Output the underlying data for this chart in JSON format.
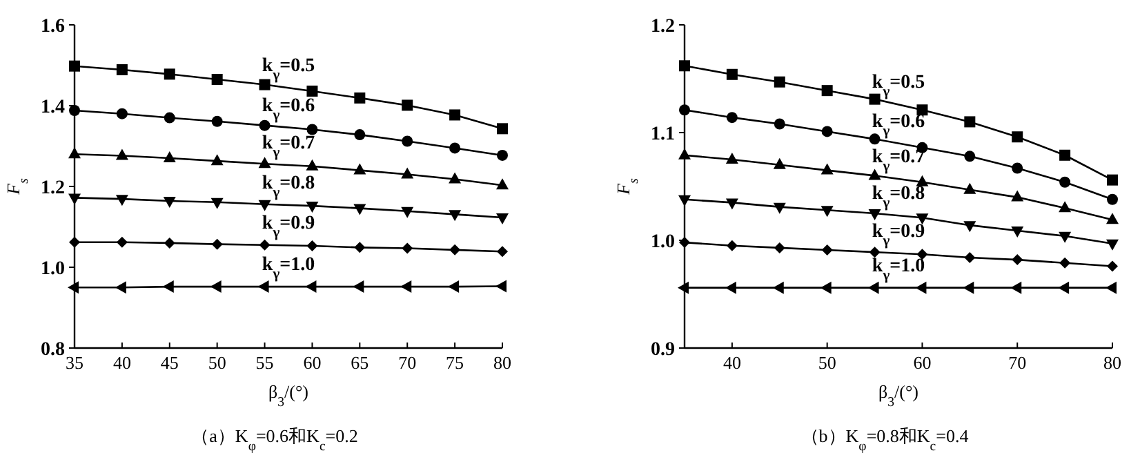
{
  "chart_data": [
    {
      "type": "line",
      "xlabel": "β$_{3}$/(°)",
      "ylabel": "F$_{s}$",
      "annotations": [
        "（a）K$_{φ}$=0.6和K$_{c}$=0.2"
      ],
      "x": [
        35,
        40,
        45,
        50,
        55,
        60,
        65,
        70,
        75,
        80
      ],
      "xlim": [
        35,
        80
      ],
      "xticks": [
        35,
        40,
        45,
        50,
        55,
        60,
        65,
        70,
        75,
        80
      ],
      "ylim": [
        0.8,
        1.6
      ],
      "yticks": [
        0.8,
        {
          "value": 1.0,
          "label": "1.0"
        },
        1.2,
        1.4,
        1.6
      ],
      "grid": false,
      "legend": false,
      "line_style": "solid",
      "series": [
        {
          "name": "k$_{γ}$=0.5",
          "color": "#000000",
          "marker": "square",
          "values": [
            1.498,
            1.489,
            1.478,
            1.465,
            1.452,
            1.436,
            1.419,
            1.401,
            1.377,
            1.343
          ]
        },
        {
          "name": "k$_{γ}$=0.6",
          "color": "#000000",
          "marker": "circle",
          "values": [
            1.388,
            1.38,
            1.37,
            1.361,
            1.351,
            1.341,
            1.328,
            1.312,
            1.295,
            1.277
          ]
        },
        {
          "name": "k$_{γ}$=0.7",
          "color": "#000000",
          "marker": "triangle",
          "values": [
            1.28,
            1.276,
            1.27,
            1.263,
            1.256,
            1.25,
            1.24,
            1.23,
            1.218,
            1.203
          ]
        },
        {
          "name": "k$_{γ}$=0.8",
          "color": "#000000",
          "marker": "triangle-down",
          "values": [
            1.172,
            1.169,
            1.164,
            1.161,
            1.156,
            1.152,
            1.146,
            1.139,
            1.131,
            1.123
          ]
        },
        {
          "name": "k$_{γ}$=0.9",
          "color": "#000000",
          "marker": "diamond",
          "values": [
            1.062,
            1.062,
            1.06,
            1.057,
            1.055,
            1.053,
            1.049,
            1.047,
            1.043,
            1.039
          ]
        },
        {
          "name": "k$_{γ}$=1.0",
          "color": "#000000",
          "marker": "triangle-left",
          "values": [
            0.95,
            0.95,
            0.952,
            0.952,
            0.952,
            0.952,
            0.952,
            0.952,
            0.952,
            0.953
          ]
        }
      ]
    },
    {
      "type": "line",
      "xlabel": "β$_{3}$/(°)",
      "ylabel": "F$_{s}$",
      "annotations": [
        "（b）K$_{φ}$=0.8和K$_{c}$=0.4"
      ],
      "x": [
        35,
        40,
        45,
        50,
        55,
        60,
        65,
        70,
        75,
        80
      ],
      "xlim": [
        35,
        80
      ],
      "xticks": [
        40,
        50,
        60,
        70,
        80
      ],
      "ylim": [
        0.9,
        1.2
      ],
      "yticks": [
        0.9,
        {
          "value": 1.0,
          "label": "1.0"
        },
        1.1,
        1.2
      ],
      "grid": false,
      "legend": false,
      "line_style": "solid",
      "series": [
        {
          "name": "k$_{γ}$=0.5",
          "color": "#000000",
          "marker": "square",
          "values": [
            1.162,
            1.154,
            1.147,
            1.139,
            1.131,
            1.121,
            1.11,
            1.096,
            1.079,
            1.056
          ]
        },
        {
          "name": "k$_{γ}$=0.6",
          "color": "#000000",
          "marker": "circle",
          "values": [
            1.121,
            1.114,
            1.108,
            1.101,
            1.094,
            1.086,
            1.078,
            1.067,
            1.054,
            1.038
          ]
        },
        {
          "name": "k$_{γ}$=0.7",
          "color": "#000000",
          "marker": "triangle",
          "values": [
            1.079,
            1.075,
            1.07,
            1.065,
            1.06,
            1.054,
            1.047,
            1.04,
            1.03,
            1.019
          ]
        },
        {
          "name": "k$_{γ}$=0.8",
          "color": "#000000",
          "marker": "triangle-down",
          "values": [
            1.038,
            1.035,
            1.031,
            1.028,
            1.025,
            1.021,
            1.014,
            1.009,
            1.004,
            0.997
          ]
        },
        {
          "name": "k$_{γ}$=0.9",
          "color": "#000000",
          "marker": "diamond",
          "values": [
            0.998,
            0.995,
            0.993,
            0.991,
            0.989,
            0.987,
            0.984,
            0.982,
            0.979,
            0.976
          ]
        },
        {
          "name": "k$_{γ}$=1.0",
          "color": "#000000",
          "marker": "triangle-left",
          "values": [
            0.956,
            0.956,
            0.956,
            0.956,
            0.956,
            0.956,
            0.956,
            0.956,
            0.956,
            0.956
          ]
        }
      ]
    }
  ]
}
